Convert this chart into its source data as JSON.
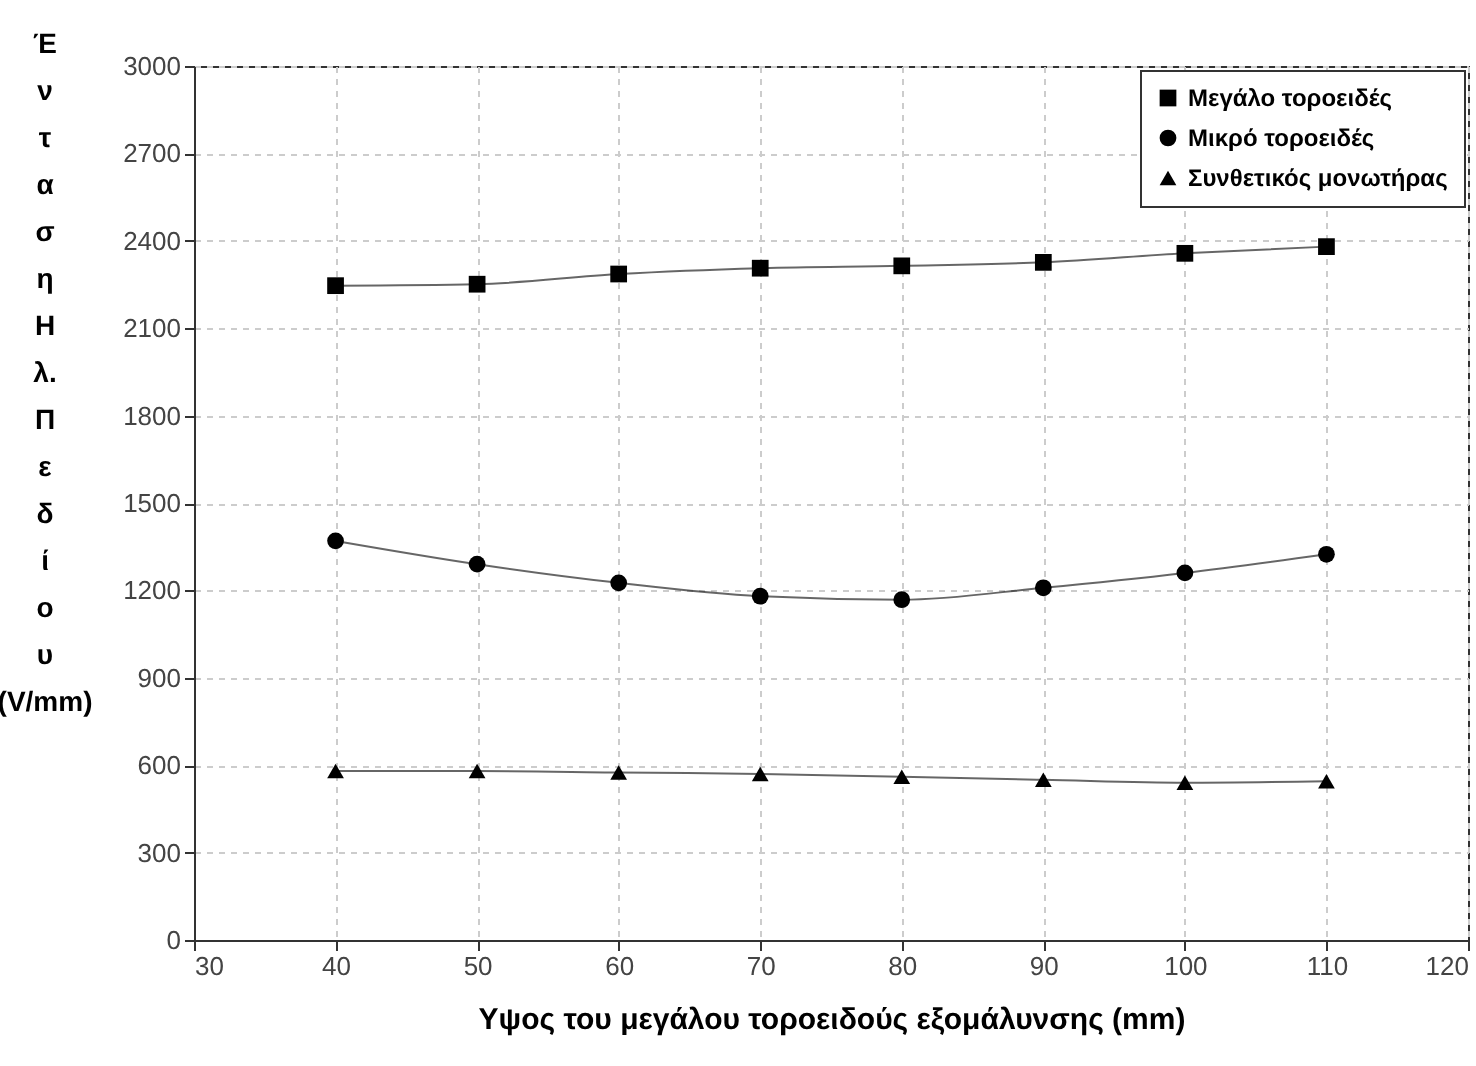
{
  "chart_data": {
    "type": "line",
    "xlabel": "Υψος του μεγάλου τοροειδούς εξομάλυνσης (mm)",
    "ylabel": "Ένταση Ηλ. Πεδίου (V/mm)",
    "x": [
      40,
      50,
      60,
      70,
      80,
      90,
      100,
      110
    ],
    "series": [
      {
        "name": "Μεγάλο τοροειδές",
        "color": "#000000",
        "marker": "square",
        "values": [
          2246,
          2251,
          2286,
          2306,
          2314,
          2326,
          2357,
          2380
        ]
      },
      {
        "name": "Μικρό τοροειδές",
        "color": "#000000",
        "marker": "circle",
        "values": [
          1370,
          1290,
          1226,
          1180,
          1168,
          1209,
          1260,
          1324
        ]
      },
      {
        "name": "Συνθετικός μονωτήρας",
        "color": "#000000",
        "marker": "triangle",
        "values": [
          580,
          580,
          575,
          570,
          560,
          550,
          540,
          545
        ]
      }
    ],
    "xlim": [
      30,
      120
    ],
    "xticks": [
      30,
      40,
      50,
      60,
      70,
      80,
      90,
      100,
      110,
      120
    ],
    "ylim": [
      0,
      3000
    ],
    "yticks": [
      0,
      300,
      600,
      900,
      1200,
      1500,
      1800,
      2100,
      2400,
      2700,
      3000
    ],
    "grid": true,
    "legend": "top right",
    "line_style": "solid"
  }
}
